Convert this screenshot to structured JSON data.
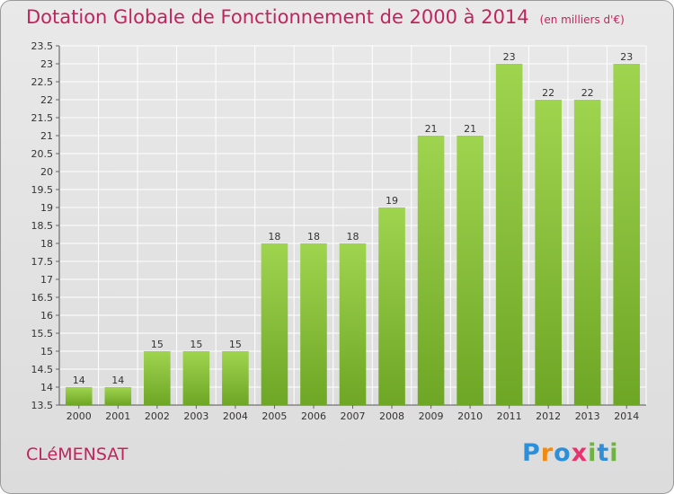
{
  "title": "Dotation Globale de Fonctionnement de 2000 à 2014",
  "unit": "(en milliers d'€)",
  "commune": "CLéMENSAT",
  "logo": {
    "letters": [
      "P",
      "r",
      "o",
      "x",
      "i",
      "t",
      "i"
    ],
    "colors": [
      "#2e8fd9",
      "#f08a12",
      "#2e8fd9",
      "#e8336e",
      "#6db33f",
      "#2e8fd9",
      "#6db33f"
    ]
  },
  "colors": {
    "bar": "#8cc63f",
    "title": "#c0245c",
    "grid": "#ffffff"
  },
  "chart_data": {
    "type": "bar",
    "categories": [
      "2000",
      "2001",
      "2002",
      "2003",
      "2004",
      "2005",
      "2006",
      "2007",
      "2008",
      "2009",
      "2010",
      "2011",
      "2012",
      "2013",
      "2014"
    ],
    "values": [
      14,
      14,
      15,
      15,
      15,
      18,
      18,
      18,
      19,
      21,
      21,
      23,
      22,
      22,
      23
    ],
    "labels": [
      "14",
      "14",
      "15",
      "15",
      "15",
      "18",
      "18",
      "18",
      "19",
      "21",
      "21",
      "23",
      "22",
      "22",
      "23"
    ],
    "ylim": [
      13.5,
      23.5
    ],
    "yticks": [
      "13.5",
      "14",
      "14.5",
      "15",
      "15.5",
      "16",
      "16.5",
      "17",
      "17.5",
      "18",
      "18.5",
      "19",
      "19.5",
      "20",
      "20.5",
      "21",
      "21.5",
      "22",
      "22.5",
      "23",
      "23.5"
    ],
    "grid": true
  }
}
